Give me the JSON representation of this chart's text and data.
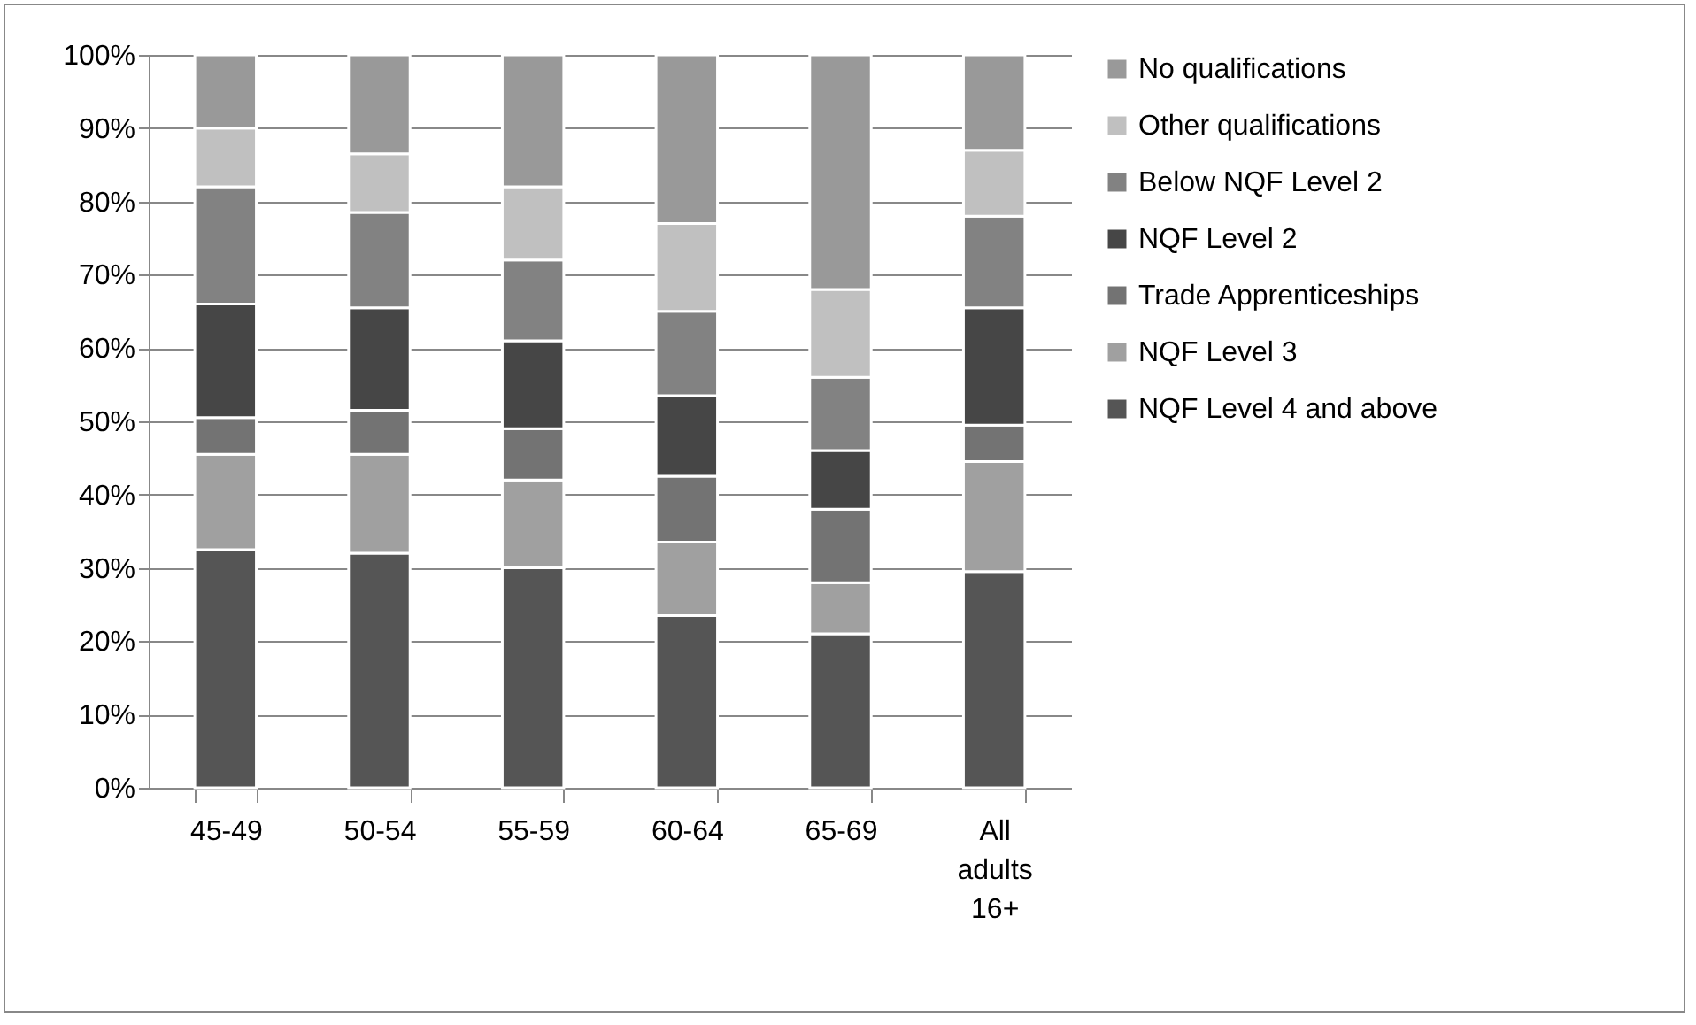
{
  "chart_data": {
    "type": "bar",
    "stacked": true,
    "categories": [
      "45-49",
      "50-54",
      "55-59",
      "60-64",
      "65-69",
      "All adults 16+"
    ],
    "series": [
      {
        "name": "NQF Level 4 and above",
        "color": "#555555",
        "values": [
          32.5,
          32,
          30,
          23.5,
          21,
          29.5
        ]
      },
      {
        "name": "NQF Level 3",
        "color": "#a0a0a0",
        "values": [
          13,
          13.5,
          12,
          10,
          7,
          15
        ]
      },
      {
        "name": "Trade Apprenticeships",
        "color": "#737373",
        "values": [
          5,
          6,
          7,
          9,
          10,
          5
        ]
      },
      {
        "name": "NQF Level 2",
        "color": "#464646",
        "values": [
          15.5,
          14,
          12,
          11,
          8,
          16
        ]
      },
      {
        "name": "Below NQF Level 2",
        "color": "#828282",
        "values": [
          16,
          13,
          11,
          11.5,
          10,
          12.5
        ]
      },
      {
        "name": "Other qualifications",
        "color": "#c0c0c0",
        "values": [
          8,
          8,
          10,
          12,
          12,
          9
        ]
      },
      {
        "name": "No qualifications",
        "color": "#999999",
        "values": [
          10,
          13.5,
          18,
          23,
          32,
          13
        ]
      }
    ],
    "ylim": [
      0,
      100
    ],
    "yticks": [
      {
        "value": 0,
        "label": "0%"
      },
      {
        "value": 10,
        "label": "10%"
      },
      {
        "value": 20,
        "label": "20%"
      },
      {
        "value": 30,
        "label": "30%"
      },
      {
        "value": 40,
        "label": "40%"
      },
      {
        "value": 50,
        "label": "50%"
      },
      {
        "value": 60,
        "label": "60%"
      },
      {
        "value": 70,
        "label": "70%"
      },
      {
        "value": 80,
        "label": "80%"
      },
      {
        "value": 90,
        "label": "90%"
      },
      {
        "value": 100,
        "label": "100%"
      }
    ],
    "grid": "y",
    "legend": "right"
  }
}
